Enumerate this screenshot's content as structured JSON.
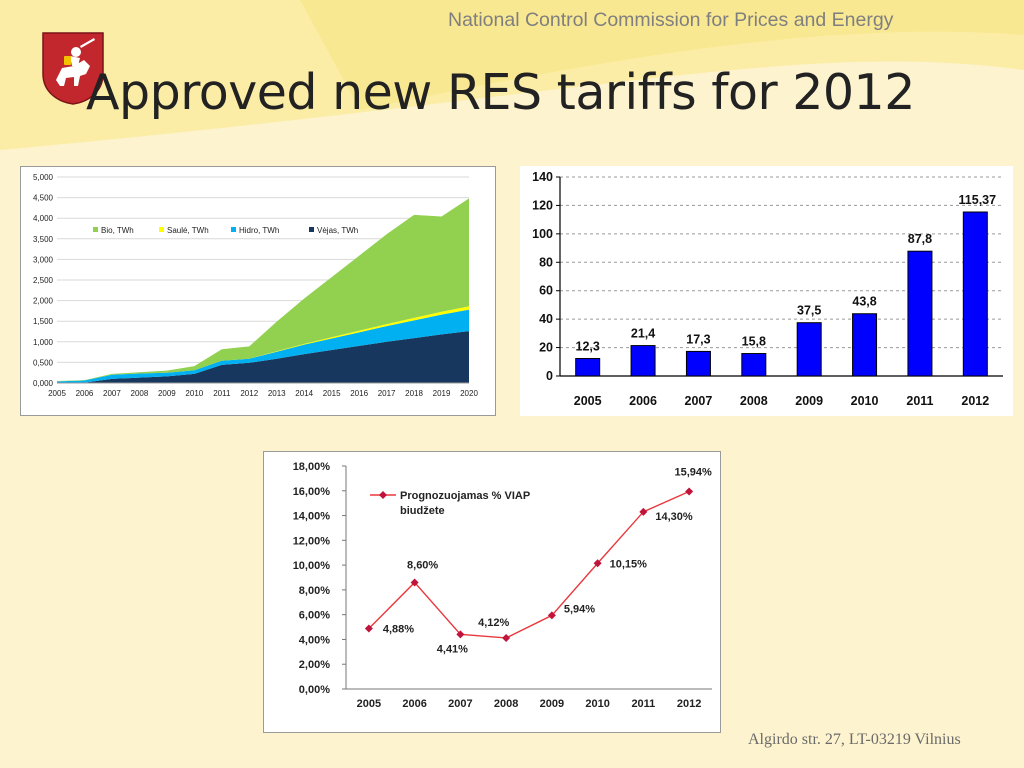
{
  "header": {
    "organization": "National Control Commission for Prices and Energy",
    "title": "Approved new RES tariffs for 2012"
  },
  "footer": {
    "address": "Algirdo str. 27, LT-03219 Vilnius"
  },
  "colors": {
    "background": "#fdf3cf",
    "bio": "#92d050",
    "saule": "#ffff00",
    "hidro": "#00b0f0",
    "vejas": "#17375e",
    "bar": "#0000ff",
    "line": "#e8383d",
    "marker": "#c0143c"
  },
  "chart_data": [
    {
      "type": "area",
      "stacked": true,
      "title": "",
      "xlabel": "",
      "ylabel": "",
      "x": [
        "2005",
        "2006",
        "2007",
        "2008",
        "2009",
        "2010",
        "2011",
        "2012",
        "2013",
        "2014",
        "2015",
        "2016",
        "2017",
        "2018",
        "2019",
        "2020"
      ],
      "ylim": [
        0,
        5
      ],
      "yticks": [
        "0,000",
        "0,500",
        "1,000",
        "1,500",
        "2,000",
        "2,500",
        "3,000",
        "3,500",
        "4,000",
        "4,500",
        "5,000"
      ],
      "grid": true,
      "legend_position": "top-left",
      "series": [
        {
          "name": "Vėjas, TWh",
          "values": [
            0.0,
            0.01,
            0.1,
            0.13,
            0.16,
            0.22,
            0.44,
            0.49,
            0.59,
            0.7,
            0.8,
            0.9,
            1.0,
            1.09,
            1.18,
            1.26
          ]
        },
        {
          "name": "Hidro, TWh",
          "values": [
            0.04,
            0.05,
            0.1,
            0.1,
            0.09,
            0.09,
            0.1,
            0.1,
            0.17,
            0.23,
            0.28,
            0.33,
            0.38,
            0.43,
            0.48,
            0.52
          ]
        },
        {
          "name": "Saulė, TWh",
          "values": [
            0.0,
            0.0,
            0.0,
            0.0,
            0.0,
            0.0,
            0.0,
            0.0,
            0.01,
            0.02,
            0.03,
            0.04,
            0.05,
            0.06,
            0.07,
            0.08
          ]
        },
        {
          "name": "Bio, TWh",
          "values": [
            0.01,
            0.01,
            0.02,
            0.03,
            0.05,
            0.1,
            0.28,
            0.3,
            0.72,
            1.1,
            1.46,
            1.82,
            2.18,
            2.5,
            2.31,
            2.62
          ]
        }
      ]
    },
    {
      "type": "bar",
      "title": "",
      "xlabel": "",
      "ylabel": "",
      "categories": [
        "2005",
        "2006",
        "2007",
        "2008",
        "2009",
        "2010",
        "2011",
        "2012"
      ],
      "values": [
        12.3,
        21.4,
        17.3,
        15.8,
        37.5,
        43.8,
        87.8,
        115.37
      ],
      "value_labels": [
        "12,3",
        "21,4",
        "17,3",
        "15,8",
        "37,5",
        "43,8",
        "87,8",
        "115,37"
      ],
      "ylim": [
        0,
        140
      ],
      "yticks": [
        "0",
        "20",
        "40",
        "60",
        "80",
        "100",
        "120",
        "140"
      ],
      "grid": true
    },
    {
      "type": "line",
      "title": "",
      "xlabel": "",
      "ylabel": "",
      "categories": [
        "2005",
        "2006",
        "2007",
        "2008",
        "2009",
        "2010",
        "2011",
        "2012"
      ],
      "series": [
        {
          "name": "Prognozuojamas % VIAP biudžete",
          "values": [
            4.88,
            8.6,
            4.41,
            4.12,
            5.94,
            10.15,
            14.3,
            15.94
          ],
          "value_labels": [
            "4,88%",
            "8,60%",
            "4,41%",
            "4,12%",
            "5,94%",
            "10,15%",
            "14,30%",
            "15,94%"
          ]
        }
      ],
      "legend_lines": [
        "Prognozuojamas % VIAP",
        "biudžete"
      ],
      "ylim": [
        0,
        18
      ],
      "yticks": [
        "0,00%",
        "2,00%",
        "4,00%",
        "6,00%",
        "8,00%",
        "10,00%",
        "12,00%",
        "14,00%",
        "16,00%",
        "18,00%"
      ],
      "grid": false,
      "legend_position": "top-left"
    }
  ]
}
